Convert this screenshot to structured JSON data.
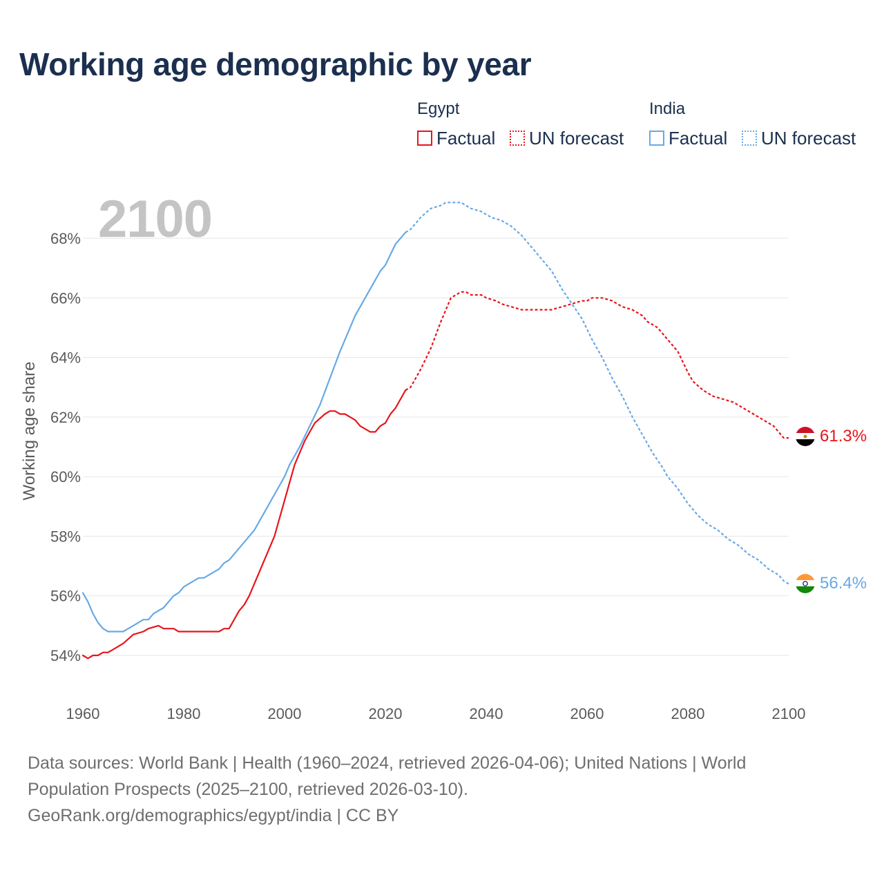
{
  "title": "Working age demographic by year",
  "legend": {
    "groups": [
      {
        "country": "Egypt",
        "factual_label": "Factual",
        "forecast_label": "UN forecast",
        "color": "#e8141b"
      },
      {
        "country": "India",
        "factual_label": "Factual",
        "forecast_label": "UN forecast",
        "color": "#66a9e6"
      }
    ]
  },
  "year_display": "2100",
  "end_labels": {
    "egypt": "61.3%",
    "india": "56.4%"
  },
  "footer": {
    "line1": "Data sources: World Bank | Health (1960–2024, retrieved 2026-04-06); United Nations | World",
    "line2": "Population Prospects (2025–2100, retrieved 2026-03-10).",
    "line3": "GeoRank.org/demographics/egypt/india | CC BY"
  },
  "chart_data": {
    "type": "line",
    "title": "Working age demographic by year",
    "xlabel": "",
    "ylabel": "Working age share",
    "xlim": [
      1960,
      2100
    ],
    "ylim": [
      53,
      69.6
    ],
    "x_ticks": [
      1960,
      1980,
      2000,
      2020,
      2040,
      2060,
      2080,
      2100
    ],
    "y_ticks": [
      54,
      56,
      58,
      60,
      62,
      64,
      66,
      68
    ],
    "y_tick_labels": [
      "54%",
      "56%",
      "58%",
      "60%",
      "62%",
      "64%",
      "66%",
      "68%"
    ],
    "grid": true,
    "series": [
      {
        "name": "Egypt",
        "color": "#e8141b",
        "factual_end_year": 2024,
        "points": [
          [
            1960,
            54.0
          ],
          [
            1961,
            53.9
          ],
          [
            1962,
            54.0
          ],
          [
            1963,
            54.0
          ],
          [
            1964,
            54.1
          ],
          [
            1965,
            54.1
          ],
          [
            1966,
            54.2
          ],
          [
            1968,
            54.4
          ],
          [
            1970,
            54.7
          ],
          [
            1972,
            54.8
          ],
          [
            1973,
            54.9
          ],
          [
            1975,
            55.0
          ],
          [
            1976,
            54.9
          ],
          [
            1978,
            54.9
          ],
          [
            1979,
            54.8
          ],
          [
            1980,
            54.8
          ],
          [
            1985,
            54.8
          ],
          [
            1987,
            54.8
          ],
          [
            1988,
            54.9
          ],
          [
            1989,
            54.9
          ],
          [
            1991,
            55.5
          ],
          [
            1992,
            55.7
          ],
          [
            1993,
            56.0
          ],
          [
            1995,
            56.8
          ],
          [
            1998,
            58.0
          ],
          [
            2000,
            59.2
          ],
          [
            2002,
            60.4
          ],
          [
            2004,
            61.2
          ],
          [
            2006,
            61.8
          ],
          [
            2008,
            62.1
          ],
          [
            2009,
            62.2
          ],
          [
            2010,
            62.2
          ],
          [
            2011,
            62.1
          ],
          [
            2012,
            62.1
          ],
          [
            2014,
            61.9
          ],
          [
            2015,
            61.7
          ],
          [
            2017,
            61.5
          ],
          [
            2018,
            61.5
          ],
          [
            2019,
            61.7
          ],
          [
            2020,
            61.8
          ],
          [
            2021,
            62.1
          ],
          [
            2022,
            62.3
          ],
          [
            2024,
            62.9
          ],
          [
            2025,
            63.0
          ],
          [
            2027,
            63.6
          ],
          [
            2029,
            64.3
          ],
          [
            2031,
            65.2
          ],
          [
            2033,
            66.0
          ],
          [
            2035,
            66.2
          ],
          [
            2036,
            66.2
          ],
          [
            2037,
            66.1
          ],
          [
            2039,
            66.1
          ],
          [
            2040,
            66.0
          ],
          [
            2042,
            65.9
          ],
          [
            2043,
            65.8
          ],
          [
            2045,
            65.7
          ],
          [
            2047,
            65.6
          ],
          [
            2053,
            65.6
          ],
          [
            2055,
            65.7
          ],
          [
            2057,
            65.8
          ],
          [
            2059,
            65.9
          ],
          [
            2060,
            65.9
          ],
          [
            2061,
            66.0
          ],
          [
            2063,
            66.0
          ],
          [
            2065,
            65.9
          ],
          [
            2067,
            65.7
          ],
          [
            2069,
            65.6
          ],
          [
            2071,
            65.4
          ],
          [
            2072,
            65.2
          ],
          [
            2074,
            65.0
          ],
          [
            2076,
            64.6
          ],
          [
            2078,
            64.2
          ],
          [
            2080,
            63.5
          ],
          [
            2081,
            63.2
          ],
          [
            2083,
            62.9
          ],
          [
            2085,
            62.7
          ],
          [
            2087,
            62.6
          ],
          [
            2089,
            62.5
          ],
          [
            2091,
            62.3
          ],
          [
            2093,
            62.1
          ],
          [
            2095,
            61.9
          ],
          [
            2097,
            61.7
          ],
          [
            2098,
            61.5
          ],
          [
            2099,
            61.3
          ],
          [
            2100,
            61.3
          ]
        ]
      },
      {
        "name": "India",
        "color": "#66a9e6",
        "factual_end_year": 2024,
        "points": [
          [
            1960,
            56.1
          ],
          [
            1961,
            55.8
          ],
          [
            1962,
            55.4
          ],
          [
            1963,
            55.1
          ],
          [
            1964,
            54.9
          ],
          [
            1965,
            54.8
          ],
          [
            1967,
            54.8
          ],
          [
            1968,
            54.8
          ],
          [
            1970,
            55.0
          ],
          [
            1972,
            55.2
          ],
          [
            1973,
            55.2
          ],
          [
            1974,
            55.4
          ],
          [
            1976,
            55.6
          ],
          [
            1978,
            56.0
          ],
          [
            1979,
            56.1
          ],
          [
            1980,
            56.3
          ],
          [
            1982,
            56.5
          ],
          [
            1983,
            56.6
          ],
          [
            1984,
            56.6
          ],
          [
            1987,
            56.9
          ],
          [
            1988,
            57.1
          ],
          [
            1989,
            57.2
          ],
          [
            1991,
            57.6
          ],
          [
            1993,
            58.0
          ],
          [
            1994,
            58.2
          ],
          [
            1996,
            58.8
          ],
          [
            1998,
            59.4
          ],
          [
            2000,
            60.0
          ],
          [
            2001,
            60.4
          ],
          [
            2003,
            61.0
          ],
          [
            2005,
            61.7
          ],
          [
            2007,
            62.4
          ],
          [
            2009,
            63.3
          ],
          [
            2011,
            64.2
          ],
          [
            2013,
            65.0
          ],
          [
            2014,
            65.4
          ],
          [
            2016,
            66.0
          ],
          [
            2018,
            66.6
          ],
          [
            2019,
            66.9
          ],
          [
            2020,
            67.1
          ],
          [
            2022,
            67.8
          ],
          [
            2024,
            68.2
          ],
          [
            2025,
            68.3
          ],
          [
            2027,
            68.7
          ],
          [
            2029,
            69.0
          ],
          [
            2031,
            69.1
          ],
          [
            2032,
            69.2
          ],
          [
            2035,
            69.2
          ],
          [
            2037,
            69.0
          ],
          [
            2039,
            68.9
          ],
          [
            2041,
            68.7
          ],
          [
            2043,
            68.6
          ],
          [
            2045,
            68.4
          ],
          [
            2047,
            68.1
          ],
          [
            2049,
            67.7
          ],
          [
            2051,
            67.3
          ],
          [
            2053,
            66.9
          ],
          [
            2055,
            66.3
          ],
          [
            2057,
            65.8
          ],
          [
            2059,
            65.3
          ],
          [
            2061,
            64.6
          ],
          [
            2063,
            64.0
          ],
          [
            2065,
            63.3
          ],
          [
            2067,
            62.7
          ],
          [
            2069,
            62.0
          ],
          [
            2071,
            61.4
          ],
          [
            2073,
            60.8
          ],
          [
            2075,
            60.3
          ],
          [
            2076,
            60.0
          ],
          [
            2078,
            59.6
          ],
          [
            2080,
            59.1
          ],
          [
            2082,
            58.7
          ],
          [
            2084,
            58.4
          ],
          [
            2086,
            58.2
          ],
          [
            2088,
            57.9
          ],
          [
            2090,
            57.7
          ],
          [
            2092,
            57.4
          ],
          [
            2094,
            57.2
          ],
          [
            2096,
            56.9
          ],
          [
            2098,
            56.7
          ],
          [
            2099,
            56.5
          ],
          [
            2100,
            56.4
          ]
        ]
      }
    ],
    "annotations": [
      "2100",
      "61.3%",
      "56.4%"
    ]
  }
}
